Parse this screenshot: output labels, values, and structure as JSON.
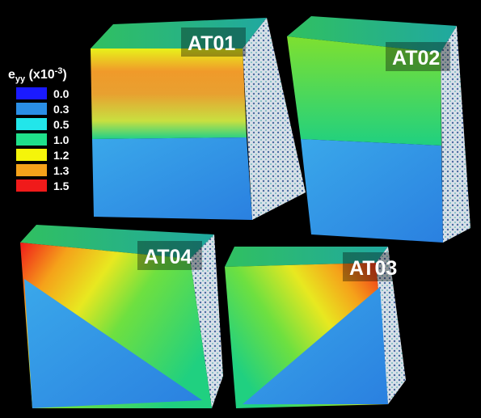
{
  "legend": {
    "title": {
      "symbol": "e",
      "subscript": "yy",
      "scale": " (x10",
      "exponent": "-3",
      "close": ")"
    },
    "items": [
      {
        "label": "0.0",
        "color": "#1a1aff"
      },
      {
        "label": "0.3",
        "color": "#2a8fe6"
      },
      {
        "label": "0.5",
        "color": "#22e6ea"
      },
      {
        "label": "1.0",
        "color": "#1fe08a"
      },
      {
        "label": "1.2",
        "color": "#f5f50a"
      },
      {
        "label": "1.3",
        "color": "#f5a21a"
      },
      {
        "label": "1.5",
        "color": "#f01a1a"
      }
    ]
  },
  "panels": [
    {
      "label": "AT01"
    },
    {
      "label": "AT02"
    },
    {
      "label": "AT04"
    },
    {
      "label": "AT03"
    }
  ]
}
